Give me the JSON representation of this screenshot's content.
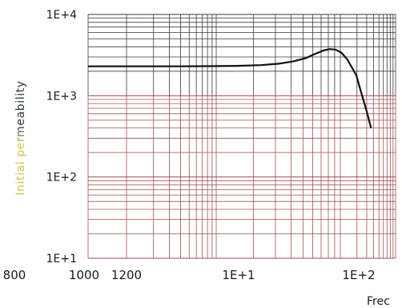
{
  "chart_data": {
    "type": "line",
    "xlabel": "Frec",
    "ylabel": "Initial permeability",
    "y_scale": "log",
    "x_scale": "log",
    "ylim": [
      10,
      10000
    ],
    "y_ticks": [
      "1E+1",
      "1E+2",
      "1E+3",
      "1E+4"
    ],
    "bottom_labels": [
      "800",
      "1000",
      "1200",
      "1E+1",
      "1E+2"
    ],
    "grid": true,
    "colors": {
      "curve": "#111111",
      "grid_upper": "#3a3a3a",
      "grid_lower": "#a05050",
      "ylabel_top": "#2c3b3b",
      "ylabel_bottom": "#d8c050"
    },
    "series": [
      {
        "points": [
          [
            0.0,
            2300
          ],
          [
            0.1,
            2300
          ],
          [
            0.2,
            2300
          ],
          [
            0.3,
            2300
          ],
          [
            0.4,
            2310
          ],
          [
            0.5,
            2330
          ],
          [
            0.58,
            2380
          ],
          [
            0.64,
            2480
          ],
          [
            0.69,
            2650
          ],
          [
            0.73,
            2900
          ],
          [
            0.76,
            3250
          ],
          [
            0.79,
            3600
          ],
          [
            0.81,
            3750
          ],
          [
            0.83,
            3700
          ],
          [
            0.85,
            3400
          ],
          [
            0.87,
            2800
          ],
          [
            0.9,
            1800
          ],
          [
            0.92,
            1000
          ],
          [
            0.935,
            650
          ],
          [
            0.95,
            400
          ]
        ]
      }
    ]
  }
}
